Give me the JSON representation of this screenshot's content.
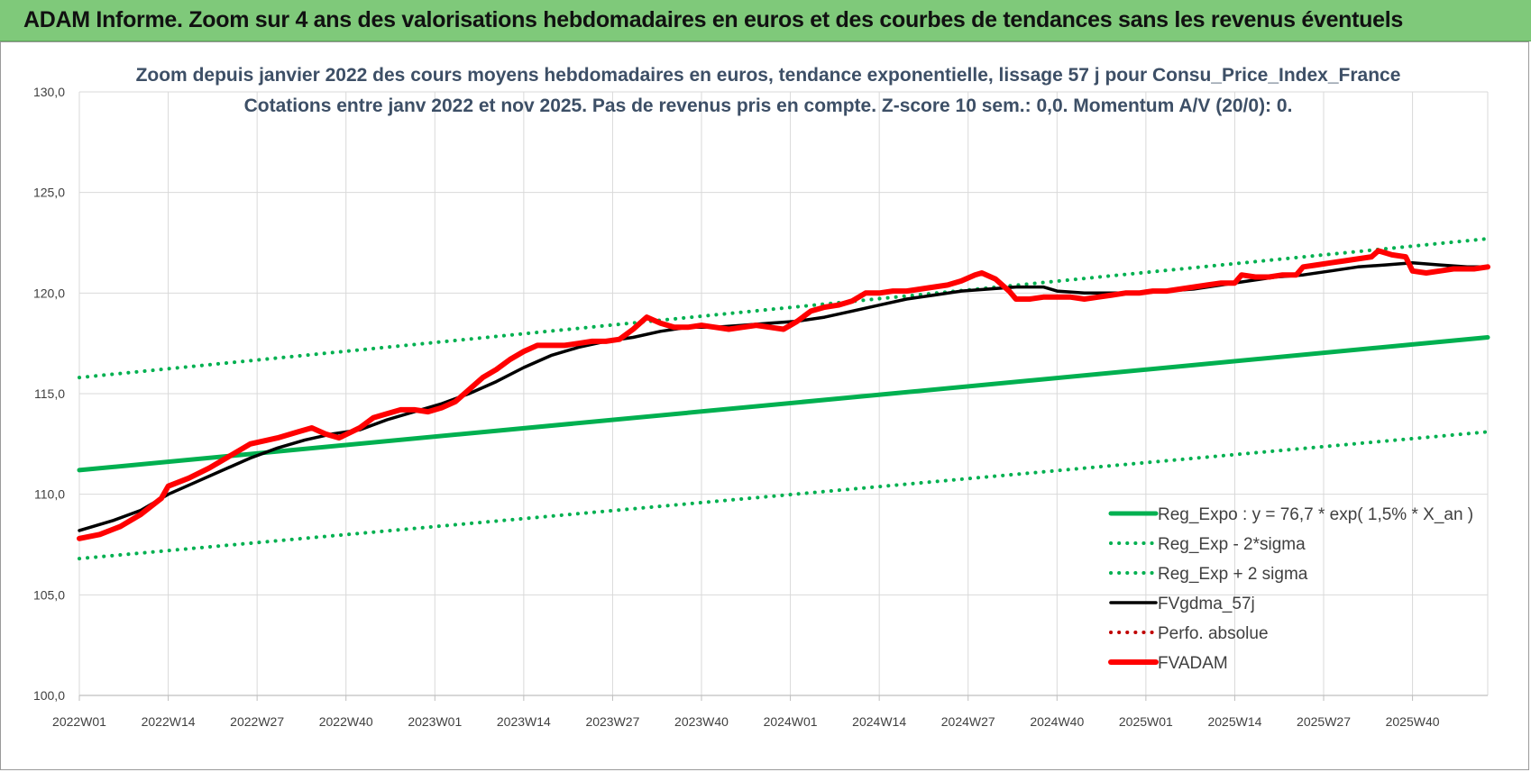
{
  "banner": {
    "title": "ADAM Informe. Zoom sur 4 ans des valorisations hebdomadaires en euros et des courbes de tendances sans les revenus éventuels"
  },
  "colors": {
    "banner": "#7fc97a",
    "regression": "#00b050",
    "fvgdma": "#000000",
    "fvadam": "#ff0000",
    "perfo": "#c00000"
  },
  "chart_data": {
    "type": "line",
    "title": "Zoom depuis janvier 2022 des cours moyens hebdomadaires en euros, tendance exponentielle, lissage 57 j pour Consu_Price_Index_France",
    "subtitle": "Cotations entre janv 2022 et nov 2025. Pas de revenus pris en compte. Z-score 10 sem.: 0,0. Momentum A/V (20/0): 0.",
    "xlabel": "",
    "ylabel": "",
    "ylim": [
      100,
      130
    ],
    "yticks": [
      "100,0",
      "105,0",
      "110,0",
      "115,0",
      "120,0",
      "125,0",
      "130,0"
    ],
    "x_tick_labels": [
      "2022W01",
      "2022W14",
      "2022W27",
      "2022W40",
      "2023W01",
      "2023W14",
      "2023W27",
      "2023W40",
      "2024W01",
      "2024W14",
      "2024W27",
      "2024W40",
      "2025W01",
      "2025W14",
      "2025W27",
      "2025W40"
    ],
    "x_range_weeks": [
      0,
      206
    ],
    "grid": "both",
    "legend_position": "bottom-right",
    "series": [
      {
        "name": "Reg_Expo : y = 76,7 * exp( 1,5% *  X_an )",
        "style": "solid-thick",
        "color": "#00b050",
        "points": [
          [
            0,
            111.2
          ],
          [
            206,
            117.8
          ]
        ]
      },
      {
        "name": "Reg_Exp - 2*sigma",
        "style": "dotted",
        "color": "#00b050",
        "points": [
          [
            0,
            106.8
          ],
          [
            206,
            113.1
          ]
        ]
      },
      {
        "name": "Reg_Exp + 2 sigma",
        "style": "dotted",
        "color": "#00b050",
        "points": [
          [
            0,
            115.8
          ],
          [
            206,
            122.7
          ]
        ]
      },
      {
        "name": "FVgdma_57j",
        "style": "solid",
        "color": "#000000",
        "points": [
          [
            0,
            108.2
          ],
          [
            5,
            108.7
          ],
          [
            9,
            109.2
          ],
          [
            13,
            110.0
          ],
          [
            17,
            110.6
          ],
          [
            21,
            111.2
          ],
          [
            25,
            111.8
          ],
          [
            29,
            112.3
          ],
          [
            33,
            112.7
          ],
          [
            37,
            113.0
          ],
          [
            41,
            113.2
          ],
          [
            45,
            113.7
          ],
          [
            49,
            114.1
          ],
          [
            53,
            114.5
          ],
          [
            57,
            115.0
          ],
          [
            61,
            115.6
          ],
          [
            65,
            116.3
          ],
          [
            69,
            116.9
          ],
          [
            73,
            117.3
          ],
          [
            77,
            117.6
          ],
          [
            81,
            117.8
          ],
          [
            85,
            118.1
          ],
          [
            89,
            118.3
          ],
          [
            93,
            118.3
          ],
          [
            97,
            118.4
          ],
          [
            101,
            118.5
          ],
          [
            105,
            118.6
          ],
          [
            109,
            118.8
          ],
          [
            113,
            119.1
          ],
          [
            117,
            119.4
          ],
          [
            121,
            119.7
          ],
          [
            125,
            119.9
          ],
          [
            129,
            120.1
          ],
          [
            133,
            120.2
          ],
          [
            137,
            120.3
          ],
          [
            141,
            120.3
          ],
          [
            143,
            120.1
          ],
          [
            147,
            120.0
          ],
          [
            151,
            120.0
          ],
          [
            155,
            120.0
          ],
          [
            159,
            120.1
          ],
          [
            163,
            120.2
          ],
          [
            167,
            120.4
          ],
          [
            171,
            120.6
          ],
          [
            175,
            120.8
          ],
          [
            179,
            120.9
          ],
          [
            183,
            121.1
          ],
          [
            187,
            121.3
          ],
          [
            191,
            121.4
          ],
          [
            195,
            121.5
          ],
          [
            199,
            121.4
          ],
          [
            203,
            121.3
          ],
          [
            206,
            121.3
          ]
        ]
      },
      {
        "name": "Perfo. absolue",
        "style": "dotted",
        "color": "#c00000",
        "points": []
      },
      {
        "name": "FVADAM",
        "style": "solid-thick",
        "color": "#ff0000",
        "points": [
          [
            0,
            107.8
          ],
          [
            3,
            108.0
          ],
          [
            6,
            108.4
          ],
          [
            9,
            109.0
          ],
          [
            12,
            109.8
          ],
          [
            13,
            110.4
          ],
          [
            16,
            110.8
          ],
          [
            19,
            111.3
          ],
          [
            22,
            111.9
          ],
          [
            25,
            112.5
          ],
          [
            29,
            112.8
          ],
          [
            32,
            113.1
          ],
          [
            34,
            113.3
          ],
          [
            36,
            113.0
          ],
          [
            38,
            112.8
          ],
          [
            41,
            113.3
          ],
          [
            43,
            113.8
          ],
          [
            45,
            114.0
          ],
          [
            47,
            114.2
          ],
          [
            49,
            114.2
          ],
          [
            51,
            114.1
          ],
          [
            53,
            114.3
          ],
          [
            55,
            114.6
          ],
          [
            57,
            115.2
          ],
          [
            59,
            115.8
          ],
          [
            61,
            116.2
          ],
          [
            63,
            116.7
          ],
          [
            65,
            117.1
          ],
          [
            67,
            117.4
          ],
          [
            69,
            117.4
          ],
          [
            71,
            117.4
          ],
          [
            73,
            117.5
          ],
          [
            75,
            117.6
          ],
          [
            77,
            117.6
          ],
          [
            79,
            117.7
          ],
          [
            81,
            118.2
          ],
          [
            83,
            118.8
          ],
          [
            85,
            118.5
          ],
          [
            87,
            118.3
          ],
          [
            89,
            118.3
          ],
          [
            91,
            118.4
          ],
          [
            93,
            118.3
          ],
          [
            95,
            118.2
          ],
          [
            97,
            118.3
          ],
          [
            99,
            118.4
          ],
          [
            101,
            118.3
          ],
          [
            103,
            118.2
          ],
          [
            105,
            118.6
          ],
          [
            107,
            119.1
          ],
          [
            109,
            119.3
          ],
          [
            111,
            119.4
          ],
          [
            113,
            119.6
          ],
          [
            115,
            120.0
          ],
          [
            117,
            120.0
          ],
          [
            119,
            120.1
          ],
          [
            121,
            120.1
          ],
          [
            123,
            120.2
          ],
          [
            125,
            120.3
          ],
          [
            127,
            120.4
          ],
          [
            129,
            120.6
          ],
          [
            131,
            120.9
          ],
          [
            132,
            121.0
          ],
          [
            134,
            120.7
          ],
          [
            136,
            120.1
          ],
          [
            137,
            119.7
          ],
          [
            139,
            119.7
          ],
          [
            141,
            119.8
          ],
          [
            143,
            119.8
          ],
          [
            145,
            119.8
          ],
          [
            147,
            119.7
          ],
          [
            149,
            119.8
          ],
          [
            151,
            119.9
          ],
          [
            153,
            120.0
          ],
          [
            155,
            120.0
          ],
          [
            157,
            120.1
          ],
          [
            159,
            120.1
          ],
          [
            161,
            120.2
          ],
          [
            163,
            120.3
          ],
          [
            165,
            120.4
          ],
          [
            167,
            120.5
          ],
          [
            169,
            120.5
          ],
          [
            170,
            120.9
          ],
          [
            172,
            120.8
          ],
          [
            174,
            120.8
          ],
          [
            176,
            120.9
          ],
          [
            178,
            120.9
          ],
          [
            179,
            121.3
          ],
          [
            181,
            121.4
          ],
          [
            183,
            121.5
          ],
          [
            185,
            121.6
          ],
          [
            187,
            121.7
          ],
          [
            189,
            121.8
          ],
          [
            190,
            122.1
          ],
          [
            192,
            121.9
          ],
          [
            194,
            121.8
          ],
          [
            195,
            121.1
          ],
          [
            197,
            121.0
          ],
          [
            199,
            121.1
          ],
          [
            201,
            121.2
          ],
          [
            204,
            121.2
          ],
          [
            206,
            121.3
          ]
        ]
      }
    ]
  }
}
